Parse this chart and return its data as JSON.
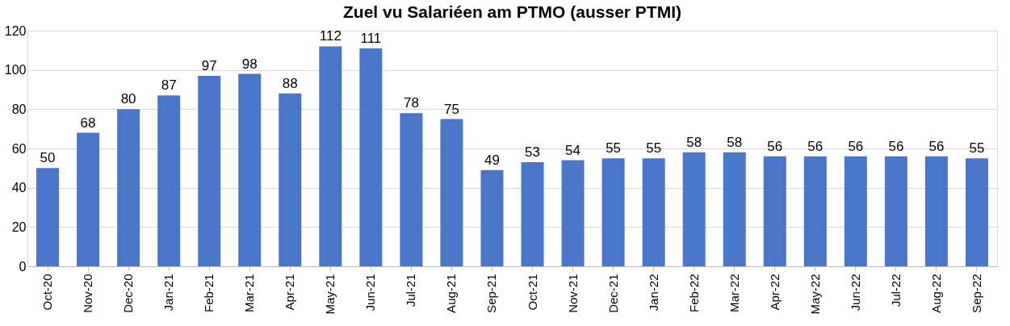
{
  "chart_data": {
    "type": "bar",
    "title": "Zuel vu Salariéen am PTMO (ausser PTMI)",
    "categories": [
      "Oct-20",
      "Nov-20",
      "Dec-20",
      "Jan-21",
      "Feb-21",
      "Mar-21",
      "Apr-21",
      "May-21",
      "Jun-21",
      "Jul-21",
      "Aug-21",
      "Sep-21",
      "Oct-21",
      "Nov-21",
      "Dec-21",
      "Jan-22",
      "Feb-22",
      "Mar-22",
      "Apr-22",
      "May-22",
      "Jun-22",
      "Jul-22",
      "Aug-22",
      "Sep-22"
    ],
    "values": [
      50,
      68,
      80,
      87,
      97,
      98,
      88,
      112,
      111,
      78,
      75,
      49,
      53,
      54,
      55,
      55,
      58,
      58,
      56,
      56,
      56,
      56,
      56,
      55
    ],
    "color": "#4a76c9",
    "ylim": [
      0,
      120
    ],
    "yticks": [
      0,
      20,
      40,
      60,
      80,
      100,
      120
    ],
    "grid": "y",
    "data_labels": true
  }
}
